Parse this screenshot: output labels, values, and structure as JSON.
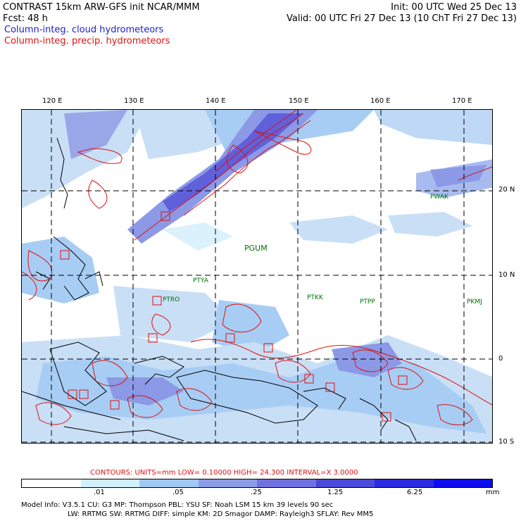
{
  "header": {
    "title": "CONTRAST 15km ARW-GFS init   NCAR/MMM",
    "init": "Init: 00 UTC Wed 25 Dec 13",
    "fcst": "Fcst:   48 h",
    "valid": "Valid: 00 UTC Fri 27 Dec 13 (10 ChT Fri 27 Dec 13)",
    "legend_blue": "Column-integ. cloud hydrometeors",
    "legend_red": "Column-integ. precip. hydrometeors"
  },
  "axes": {
    "lon_labels": [
      "120 E",
      "130 E",
      "140 E",
      "150 E",
      "160 E",
      "170 E"
    ],
    "lat_labels": [
      "20 N",
      "10 N",
      "0",
      "10 S"
    ]
  },
  "stations": [
    "PGUM",
    "PTYA",
    "PTRO",
    "PTKK",
    "PTPP",
    "PKMJ",
    "PWAK"
  ],
  "contours_line": "CONTOURS:  UNITS=mm  LOW= 0.10000       HIGH=  24.300        INTERVAL=X  3.0000",
  "colorbar": {
    "labels": [
      ".01",
      ".05",
      ".25",
      "1.25",
      "6.25",
      "mm"
    ],
    "colors": [
      "#ffffff",
      "#d0f0fb",
      "#9fc8f3",
      "#8c9ee8",
      "#7070e0",
      "#4a4ad8",
      "#2a2ae0",
      "#0c0cee"
    ]
  },
  "model_info": {
    "line1": "Model Info: V3.5.1     CU: G3      MP: Thompson     PBL: YSU      SF: Noah LSM     15 km    39 levels    90 sec",
    "line2": "LW: RRTMG    SW: RRTMG   DIFF: simple KM: 2D Smagor DAMP: Rayleigh3   SFLAY: Rev MM5"
  }
}
